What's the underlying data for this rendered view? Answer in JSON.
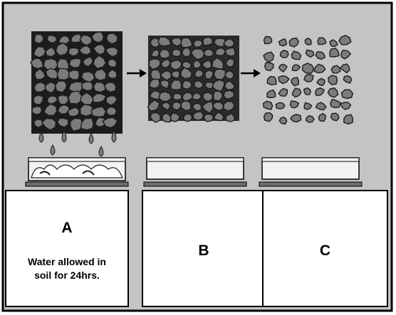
{
  "colors": {
    "background": "#c4c4c4",
    "stone_fill": "#7b7b7b",
    "stone_edge": "#1c1c1c",
    "tray": "#f2f2f2",
    "outline": "#000000"
  },
  "icons": [
    "soil-block-icon",
    "arrow-right-icon",
    "water-drop-icon",
    "tray-icon"
  ],
  "panels": [
    {
      "letter": "A",
      "caption_lines": [
        "Water allowed in",
        "soil for 24hrs."
      ]
    },
    {
      "letter": "B",
      "caption_lines": []
    },
    {
      "letter": "C",
      "caption_lines": []
    }
  ]
}
